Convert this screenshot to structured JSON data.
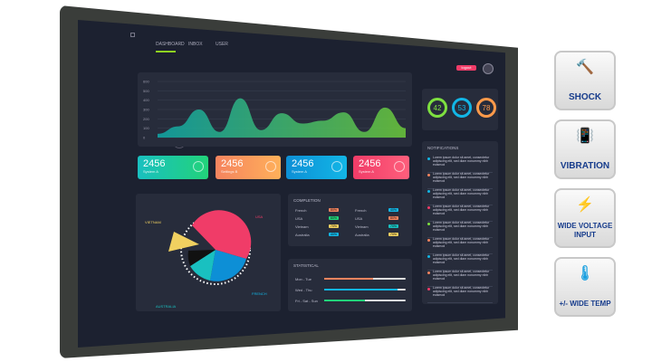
{
  "dashboard": {
    "nav": [
      "DASHBOARD",
      "INBOX",
      "USER"
    ],
    "logout_label": "logout",
    "chart": {
      "type": "area",
      "y_ticks": [
        "0",
        "100",
        "200",
        "300",
        "400",
        "500",
        "600"
      ],
      "values": [
        40,
        120,
        300,
        60,
        420,
        80,
        260,
        150,
        180,
        270,
        60,
        320,
        100
      ]
    },
    "cards": [
      {
        "value": "2456",
        "label": "System A",
        "color": "#19c0c0",
        "color2": "#22d37a"
      },
      {
        "value": "2456",
        "label": "Settings B",
        "color": "#f5845f",
        "color2": "#ffb05a"
      },
      {
        "value": "2456",
        "label": "System A",
        "color": "#0d8fd6",
        "color2": "#12b6e6"
      },
      {
        "value": "2456",
        "label": "System A",
        "color": "#f03c68",
        "color2": "#ff5f7c"
      }
    ],
    "pie": {
      "labels": {
        "vietnam": "VIETNAM",
        "usa": "USA",
        "french": "FRENCH",
        "australia": "AUSTRALIA"
      }
    },
    "completion": {
      "title": "COMPLETION",
      "left": [
        {
          "name": "French",
          "pct": "80%",
          "color": "#f5845f"
        },
        {
          "name": "USA",
          "pct": "60%",
          "color": "#22d37a"
        },
        {
          "name": "Vietnam",
          "pct": "70%",
          "color": "#f0d060"
        },
        {
          "name": "Australia",
          "pct": "40%",
          "color": "#12b6e6"
        }
      ],
      "right": [
        {
          "name": "French",
          "pct": "40%",
          "color": "#12b6e6"
        },
        {
          "name": "USA",
          "pct": "80%",
          "color": "#f5845f"
        },
        {
          "name": "Vietnam",
          "pct": "70%",
          "color": "#19c0c0"
        },
        {
          "name": "Australia",
          "pct": "70%",
          "color": "#f0d060"
        }
      ]
    },
    "statistical": {
      "title": "STATISTICAL",
      "rows": [
        {
          "label": "Mon - Tue",
          "fill": 0.6,
          "color": "#f5845f"
        },
        {
          "label": "Wed - Thu",
          "fill": 0.9,
          "color": "#12b6e6"
        },
        {
          "label": "Fri - Sat - Sun",
          "fill": 0.5,
          "color": "#22d37a"
        }
      ]
    },
    "gauges": [
      {
        "value": "42",
        "color": "#7ee040"
      },
      {
        "value": "53",
        "color": "#12b6e6"
      },
      {
        "value": "78",
        "color": "#ff9a4a"
      }
    ],
    "notifications": {
      "title": "NOTIFICATIONS",
      "text": "Lorem ipsum dolor sit amet, consectetur adipiscing elit, sed diam nonummy nibh euismod",
      "dots": [
        "#12b6e6",
        "#f5845f",
        "#12b6e6",
        "#f03c68",
        "#7ee040",
        "#f5845f",
        "#12b6e6",
        "#f5845f",
        "#f03c68"
      ]
    }
  },
  "features": [
    "SHOCK",
    "VIBRATION",
    "WIDE VOLTAGE INPUT",
    "+/- WIDE TEMP"
  ]
}
